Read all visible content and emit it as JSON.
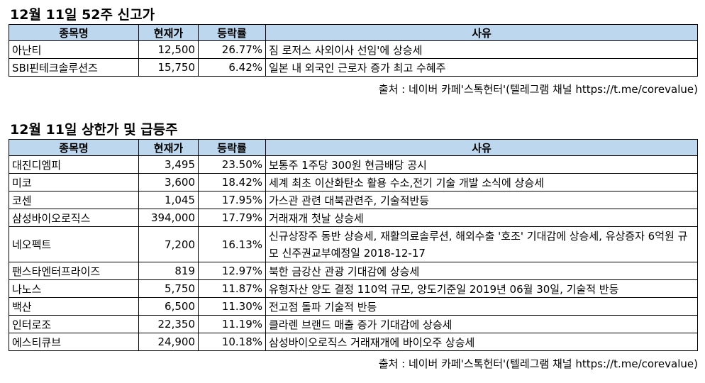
{
  "section1": {
    "title": "12월 11일 52주 신고가",
    "headers": [
      "종목명",
      "현재가",
      "등락률",
      "사유"
    ],
    "rows": [
      {
        "name": "아난티",
        "price": "12,500",
        "change": "26.77%",
        "reason": "짐 로저스 사외이사 선임'에 상승세"
      },
      {
        "name": "SBI핀테크솔루션즈",
        "price": "15,750",
        "change": "6.42%",
        "reason": "일본 내 외국인 근로자 증가 최고 수혜주"
      }
    ],
    "source": "출처 : 네이버 카페'스톡헌터'(텔레그램 채널 https://t.me/corevalue)"
  },
  "section2": {
    "title": "12월 11일 상한가 및 급등주",
    "headers": [
      "종목명",
      "현재가",
      "등락률",
      "사유"
    ],
    "rows": [
      {
        "name": "대진디엠피",
        "price": "3,495",
        "change": "23.50%",
        "reason": "보통주 1주당 300원 현금배당 공시"
      },
      {
        "name": "미코",
        "price": "3,600",
        "change": "18.42%",
        "reason": "세계 최초 이산화탄소 활용 수소,전기 기술 개발 소식에 상승세"
      },
      {
        "name": "코센",
        "price": "1,045",
        "change": "17.95%",
        "reason": "가스관 관련 대북관련주, 기술적반등"
      },
      {
        "name": "삼성바이오로직스",
        "price": "394,000",
        "change": "17.79%",
        "reason": "거래재개 첫날 상승세"
      },
      {
        "name": "네오펙트",
        "price": "7,200",
        "change": "16.13%",
        "reason": "신규상장주 동반 상승세, 재활의료솔루션, 해외수출 '호조' 기대감에 상승세, 유상증자 6억원 규모 신주권교부예정일 2018-12-17"
      },
      {
        "name": "팬스타엔터프라이즈",
        "price": "819",
        "change": "12.97%",
        "reason": "북한 금강산 관광 기대감에 상승세"
      },
      {
        "name": "나노스",
        "price": "5,750",
        "change": "11.87%",
        "reason": "유형자산 양도 결정 110억 규모, 양도기준일 2019년 06월 30일, 기술적 반등"
      },
      {
        "name": "백산",
        "price": "6,500",
        "change": "11.30%",
        "reason": "전고점 돌파 기술적 반등"
      },
      {
        "name": "인터로조",
        "price": "22,350",
        "change": "11.19%",
        "reason": "클라렌 브랜드 매출 증가 기대감에 상승세"
      },
      {
        "name": "에스티큐브",
        "price": "24,900",
        "change": "10.18%",
        "reason": "삼성바이오로직스 거래재개에 바이오주 상승세"
      }
    ],
    "source": "출처 : 네이버 카페'스톡헌터'(텔레그램 채널 https://t.me/corevalue)"
  }
}
